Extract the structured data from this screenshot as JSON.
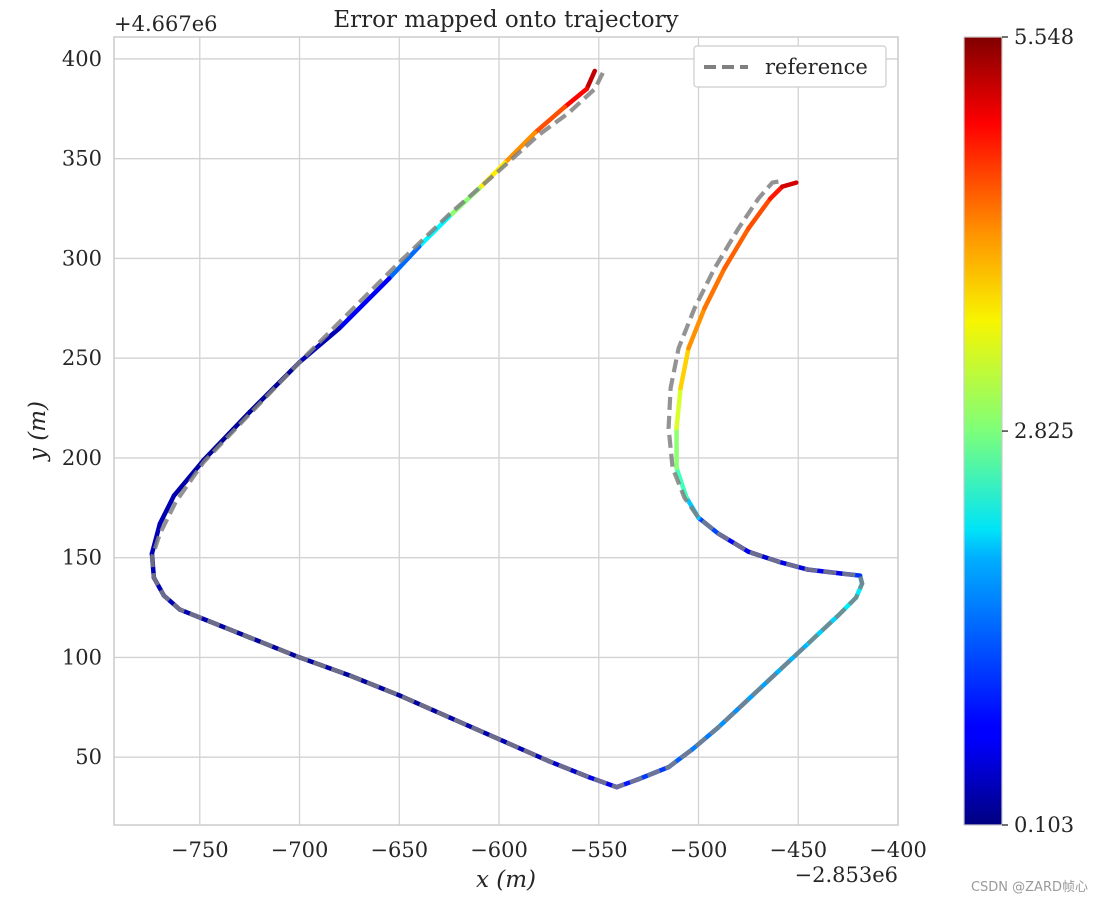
{
  "chart_data": {
    "type": "line",
    "title": "Error mapped onto trajectory",
    "xlabel": "x (m)",
    "ylabel": "y (m)",
    "x_offset_label": "−2.853e6",
    "y_offset_label": "+4.667e6",
    "xlim": [
      -793,
      -400
    ],
    "ylim": [
      16,
      411
    ],
    "x_ticks": [
      -750,
      -700,
      -650,
      -600,
      -550,
      -500,
      -450,
      -400
    ],
    "x_tick_labels": [
      "−750",
      "−700",
      "−650",
      "−600",
      "−550",
      "−500",
      "−450",
      "−400"
    ],
    "y_ticks": [
      50,
      100,
      150,
      200,
      250,
      300,
      350,
      400
    ],
    "y_tick_labels": [
      "50",
      "100",
      "150",
      "200",
      "250",
      "300",
      "350",
      "400"
    ],
    "grid": true,
    "legend": {
      "position": "top-right",
      "entries": [
        "reference"
      ]
    },
    "colorbar": {
      "min": 0.103,
      "max": 5.548,
      "tick_values": [
        0.103,
        2.825,
        5.548
      ],
      "tick_labels": [
        "0.103",
        "2.825",
        "5.548"
      ],
      "colormap": "jet"
    },
    "series": [
      {
        "name": "reference",
        "style": "dashed",
        "color": "#808080",
        "points": [
          [
            -548,
            393
          ],
          [
            -552,
            385
          ],
          [
            -565,
            373
          ],
          [
            -580,
            362
          ],
          [
            -600,
            344
          ],
          [
            -625,
            322
          ],
          [
            -650,
            298
          ],
          [
            -675,
            273
          ],
          [
            -700,
            248
          ],
          [
            -725,
            222
          ],
          [
            -748,
            198
          ],
          [
            -762,
            178
          ],
          [
            -770,
            162
          ],
          [
            -774,
            150
          ],
          [
            -773,
            140
          ],
          [
            -768,
            131
          ],
          [
            -760,
            124
          ],
          [
            -745,
            118
          ],
          [
            -725,
            110
          ],
          [
            -700,
            100
          ],
          [
            -675,
            91
          ],
          [
            -650,
            81
          ],
          [
            -625,
            70
          ],
          [
            -600,
            59
          ],
          [
            -575,
            48
          ],
          [
            -555,
            40
          ],
          [
            -541,
            35
          ],
          [
            -530,
            39
          ],
          [
            -515,
            45
          ],
          [
            -503,
            54
          ],
          [
            -490,
            65
          ],
          [
            -475,
            79
          ],
          [
            -460,
            93
          ],
          [
            -445,
            107
          ],
          [
            -430,
            121
          ],
          [
            -421,
            130
          ],
          [
            -418,
            137
          ],
          [
            -419,
            141
          ],
          [
            -428,
            142
          ],
          [
            -445,
            144
          ],
          [
            -460,
            148
          ],
          [
            -475,
            153
          ],
          [
            -490,
            162
          ],
          [
            -500,
            170
          ],
          [
            -507,
            180
          ],
          [
            -513,
            195
          ],
          [
            -515,
            215
          ],
          [
            -514,
            235
          ],
          [
            -510,
            255
          ],
          [
            -502,
            275
          ],
          [
            -492,
            295
          ],
          [
            -480,
            315
          ],
          [
            -470,
            330
          ],
          [
            -463,
            338
          ],
          [
            -457,
            339
          ]
        ]
      },
      {
        "name": "",
        "style": "error-colored",
        "points": [
          [
            -552,
            394,
            5.3
          ],
          [
            -556,
            385,
            5.1
          ],
          [
            -567,
            376,
            4.6
          ],
          [
            -582,
            363,
            4.3
          ],
          [
            -597,
            348,
            3.9
          ],
          [
            -610,
            335,
            3.3
          ],
          [
            -625,
            321,
            2.5
          ],
          [
            -640,
            306,
            1.7
          ],
          [
            -655,
            290,
            1.0
          ],
          [
            -680,
            265,
            0.5
          ],
          [
            -700,
            248,
            0.3
          ],
          [
            -725,
            223,
            0.2
          ],
          [
            -748,
            199,
            0.3
          ],
          [
            -763,
            181,
            0.35
          ],
          [
            -770,
            167,
            0.4
          ],
          [
            -774,
            152,
            0.4
          ],
          [
            -773,
            140,
            0.4
          ],
          [
            -768,
            131,
            0.4
          ],
          [
            -760,
            124,
            0.4
          ],
          [
            -745,
            118,
            0.3
          ],
          [
            -725,
            110,
            0.3
          ],
          [
            -700,
            100,
            0.3
          ],
          [
            -675,
            91,
            0.3
          ],
          [
            -650,
            81,
            0.3
          ],
          [
            -625,
            70,
            0.3
          ],
          [
            -600,
            59,
            0.4
          ],
          [
            -575,
            48,
            0.4
          ],
          [
            -555,
            40,
            0.6
          ],
          [
            -541,
            35,
            0.8
          ],
          [
            -530,
            39,
            1.0
          ],
          [
            -515,
            45,
            1.2
          ],
          [
            -503,
            54,
            1.4
          ],
          [
            -490,
            65,
            1.5
          ],
          [
            -475,
            79,
            1.6
          ],
          [
            -460,
            93,
            1.7
          ],
          [
            -445,
            107,
            1.8
          ],
          [
            -430,
            121,
            2.0
          ],
          [
            -421,
            130,
            2.1
          ],
          [
            -418,
            137,
            2.0
          ],
          [
            -419,
            141,
            1.5
          ],
          [
            -428,
            142,
            0.6
          ],
          [
            -445,
            144,
            0.8
          ],
          [
            -460,
            148,
            0.5
          ],
          [
            -475,
            153,
            0.6
          ],
          [
            -490,
            162,
            0.9
          ],
          [
            -500,
            170,
            1.4
          ],
          [
            -506,
            180,
            2.3
          ],
          [
            -511,
            195,
            2.7
          ],
          [
            -511,
            215,
            3.1
          ],
          [
            -509,
            235,
            3.5
          ],
          [
            -505,
            255,
            4.0
          ],
          [
            -497,
            275,
            4.2
          ],
          [
            -487,
            295,
            4.3
          ],
          [
            -475,
            315,
            4.4
          ],
          [
            -464,
            330,
            4.5
          ],
          [
            -458,
            336,
            5.0
          ],
          [
            -451,
            338,
            5.2
          ]
        ]
      }
    ]
  },
  "watermark": "CSDN @ZARD帧心"
}
